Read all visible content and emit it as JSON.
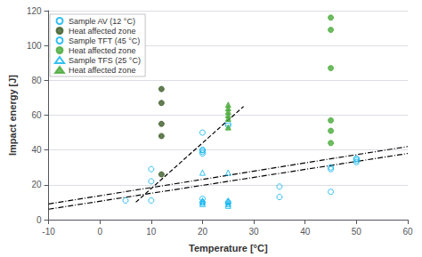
{
  "chart_data": {
    "type": "scatter",
    "xlabel": "Temperature [°C]",
    "ylabel": "Impact energy [J]",
    "xlim": [
      -10,
      60
    ],
    "ylim": [
      0,
      120
    ],
    "xticks": [
      -10,
      0,
      10,
      20,
      30,
      40,
      50,
      60
    ],
    "yticks": [
      0,
      20,
      40,
      60,
      80,
      100,
      120
    ],
    "grid": "y",
    "legend": "upper left",
    "series": [
      {
        "name": "Sample AV (12 °C)",
        "color": "#00b0f0",
        "marker": "circle-open",
        "x": [
          5,
          10,
          10,
          20,
          20,
          20,
          35,
          45,
          45,
          50,
          50
        ],
        "values": [
          11,
          22,
          11,
          50,
          40,
          38,
          19,
          30,
          16,
          35,
          33
        ]
      },
      {
        "name": "Heat affected zone",
        "color": "#3d5c28",
        "marker": "circle",
        "x": [
          12,
          12,
          12,
          12,
          12
        ],
        "values": [
          75,
          67,
          55,
          48,
          26
        ]
      },
      {
        "name": "Sample TFT (45 °C)",
        "color": "#00b0f0",
        "marker": "circle-open",
        "x": [
          10,
          20,
          20,
          20,
          20,
          25,
          25,
          25,
          35,
          45,
          50,
          50
        ],
        "values": [
          29,
          40,
          39,
          12,
          10,
          55,
          54,
          10,
          13,
          29,
          35,
          34
        ]
      },
      {
        "name": "Heat affected zone",
        "color": "#4aaa3a",
        "marker": "circle",
        "x": [
          45,
          45,
          45,
          45,
          45,
          45
        ],
        "values": [
          116,
          109,
          87,
          57,
          51,
          44
        ]
      },
      {
        "name": "Sample TFS (25 °C)",
        "color": "#00b0f0",
        "marker": "triangle-open",
        "x": [
          20,
          20,
          20,
          20,
          25,
          25,
          25,
          25,
          25
        ],
        "values": [
          27,
          11,
          10,
          9,
          27,
          11,
          10,
          9,
          8
        ]
      },
      {
        "name": "Heat affected zone",
        "color": "#4aaa3a",
        "marker": "triangle",
        "x": [
          25,
          25,
          25,
          25,
          25,
          25
        ],
        "values": [
          66,
          64,
          62,
          60,
          58,
          53
        ]
      },
      {
        "type": "line",
        "color": "#000000",
        "line_style": "dashdot",
        "x": [
          -10,
          60
        ],
        "values": [
          6,
          38
        ]
      },
      {
        "type": "line",
        "color": "#000000",
        "line_style": "dashdot",
        "x": [
          -10,
          60
        ],
        "values": [
          9,
          42
        ]
      },
      {
        "type": "line",
        "color": "#000000",
        "line_style": "dashed",
        "x": [
          7,
          28
        ],
        "values": [
          10,
          65
        ]
      }
    ]
  }
}
